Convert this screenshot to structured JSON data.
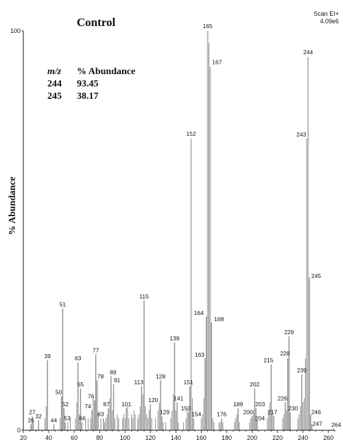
{
  "chart_data": {
    "type": "bar",
    "title": "Control",
    "scan_label": "Scan EI+",
    "scan_value": "4.09e6",
    "ylabel": "% Abundance",
    "xlabel": "",
    "xlim": [
      20,
      265
    ],
    "ylim": [
      0,
      100
    ],
    "x_ticks": [
      20,
      40,
      60,
      80,
      100,
      120,
      140,
      160,
      180,
      200,
      220,
      240,
      260
    ],
    "y_ticks": [
      0,
      100
    ],
    "annotation_table": {
      "headers": [
        "m/z",
        "% Abundance"
      ],
      "rows": [
        [
          "244",
          "93.45"
        ],
        [
          "245",
          "38.17"
        ]
      ]
    },
    "labeled_peaks": [
      {
        "mz": 26,
        "value": 1.5
      },
      {
        "mz": 27,
        "value": 3.5
      },
      {
        "mz": 32,
        "value": 2.5
      },
      {
        "mz": 39,
        "value": 17.5
      },
      {
        "mz": 44,
        "value": 1.5
      },
      {
        "mz": 50,
        "value": 8.5
      },
      {
        "mz": 51,
        "value": 30.5
      },
      {
        "mz": 52,
        "value": 5.5
      },
      {
        "mz": 53,
        "value": 2
      },
      {
        "mz": 63,
        "value": 17
      },
      {
        "mz": 65,
        "value": 10.5
      },
      {
        "mz": 66,
        "value": 2
      },
      {
        "mz": 74,
        "value": 5
      },
      {
        "mz": 76,
        "value": 7.5
      },
      {
        "mz": 77,
        "value": 19
      },
      {
        "mz": 78,
        "value": 12.5
      },
      {
        "mz": 83,
        "value": 3
      },
      {
        "mz": 87,
        "value": 5.5
      },
      {
        "mz": 89,
        "value": 13.5
      },
      {
        "mz": 91,
        "value": 11.5
      },
      {
        "mz": 101,
        "value": 5.5
      },
      {
        "mz": 113,
        "value": 11
      },
      {
        "mz": 115,
        "value": 32.5
      },
      {
        "mz": 120,
        "value": 6.5
      },
      {
        "mz": 128,
        "value": 12.5
      },
      {
        "mz": 129,
        "value": 3.5
      },
      {
        "mz": 139,
        "value": 22
      },
      {
        "mz": 141,
        "value": 7
      },
      {
        "mz": 150,
        "value": 4.5
      },
      {
        "mz": 151,
        "value": 11
      },
      {
        "mz": 152,
        "value": 73
      },
      {
        "mz": 154,
        "value": 3
      },
      {
        "mz": 163,
        "value": 18
      },
      {
        "mz": 164,
        "value": 28.5
      },
      {
        "mz": 165,
        "value": 100
      },
      {
        "mz": 167,
        "value": 91
      },
      {
        "mz": 168,
        "value": 27
      },
      {
        "mz": 176,
        "value": 3
      },
      {
        "mz": 189,
        "value": 5.5
      },
      {
        "mz": 200,
        "value": 3.5
      },
      {
        "mz": 202,
        "value": 10.5
      },
      {
        "mz": 203,
        "value": 5.5
      },
      {
        "mz": 204,
        "value": 2.5
      },
      {
        "mz": 215,
        "value": 16.5
      },
      {
        "mz": 217,
        "value": 3.5
      },
      {
        "mz": 226,
        "value": 7
      },
      {
        "mz": 228,
        "value": 18
      },
      {
        "mz": 229,
        "value": 23.5
      },
      {
        "mz": 230,
        "value": 4.5
      },
      {
        "mz": 239,
        "value": 14
      },
      {
        "mz": 243,
        "value": 73
      },
      {
        "mz": 244,
        "value": 93.45
      },
      {
        "mz": 245,
        "value": 38.17
      },
      {
        "mz": 246,
        "value": 4
      },
      {
        "mz": 247,
        "value": 1.5
      },
      {
        "mz": 264,
        "value": 0.5
      }
    ],
    "minor_peaks": [
      {
        "mz": 28,
        "value": 2
      },
      {
        "mz": 37,
        "value": 3
      },
      {
        "mz": 38,
        "value": 6
      },
      {
        "mz": 49,
        "value": 3
      },
      {
        "mz": 55,
        "value": 2
      },
      {
        "mz": 57,
        "value": 3
      },
      {
        "mz": 61,
        "value": 3
      },
      {
        "mz": 62,
        "value": 7
      },
      {
        "mz": 64,
        "value": 4
      },
      {
        "mz": 69,
        "value": 2.5
      },
      {
        "mz": 71,
        "value": 3
      },
      {
        "mz": 73,
        "value": 3
      },
      {
        "mz": 75,
        "value": 8
      },
      {
        "mz": 79,
        "value": 4
      },
      {
        "mz": 81,
        "value": 3
      },
      {
        "mz": 84,
        "value": 2
      },
      {
        "mz": 85,
        "value": 3
      },
      {
        "mz": 86,
        "value": 4
      },
      {
        "mz": 88,
        "value": 8
      },
      {
        "mz": 90,
        "value": 5
      },
      {
        "mz": 92,
        "value": 3
      },
      {
        "mz": 94,
        "value": 4
      },
      {
        "mz": 95,
        "value": 3
      },
      {
        "mz": 98,
        "value": 3
      },
      {
        "mz": 99,
        "value": 4
      },
      {
        "mz": 100,
        "value": 3
      },
      {
        "mz": 102,
        "value": 6
      },
      {
        "mz": 103,
        "value": 3
      },
      {
        "mz": 105,
        "value": 4
      },
      {
        "mz": 106,
        "value": 3
      },
      {
        "mz": 107,
        "value": 5
      },
      {
        "mz": 108,
        "value": 4
      },
      {
        "mz": 110,
        "value": 3
      },
      {
        "mz": 111,
        "value": 4
      },
      {
        "mz": 112,
        "value": 6
      },
      {
        "mz": 114,
        "value": 9
      },
      {
        "mz": 116,
        "value": 6
      },
      {
        "mz": 117,
        "value": 4
      },
      {
        "mz": 118,
        "value": 3
      },
      {
        "mz": 119,
        "value": 5
      },
      {
        "mz": 121,
        "value": 3
      },
      {
        "mz": 124,
        "value": 3
      },
      {
        "mz": 126,
        "value": 5
      },
      {
        "mz": 127,
        "value": 7
      },
      {
        "mz": 130,
        "value": 2
      },
      {
        "mz": 132,
        "value": 2
      },
      {
        "mz": 136,
        "value": 3
      },
      {
        "mz": 137,
        "value": 5
      },
      {
        "mz": 138,
        "value": 9
      },
      {
        "mz": 140,
        "value": 5
      },
      {
        "mz": 142,
        "value": 2
      },
      {
        "mz": 146,
        "value": 2
      },
      {
        "mz": 148,
        "value": 3
      },
      {
        "mz": 149,
        "value": 5
      },
      {
        "mz": 153,
        "value": 8
      },
      {
        "mz": 160,
        "value": 3
      },
      {
        "mz": 161,
        "value": 4
      },
      {
        "mz": 162,
        "value": 8
      },
      {
        "mz": 166,
        "value": 97
      },
      {
        "mz": 169,
        "value": 3
      },
      {
        "mz": 170,
        "value": 2
      },
      {
        "mz": 174,
        "value": 2
      },
      {
        "mz": 175,
        "value": 2
      },
      {
        "mz": 177,
        "value": 2
      },
      {
        "mz": 186,
        "value": 2
      },
      {
        "mz": 187,
        "value": 3
      },
      {
        "mz": 188,
        "value": 4
      },
      {
        "mz": 190,
        "value": 2
      },
      {
        "mz": 198,
        "value": 2
      },
      {
        "mz": 199,
        "value": 3
      },
      {
        "mz": 201,
        "value": 5
      },
      {
        "mz": 212,
        "value": 3
      },
      {
        "mz": 213,
        "value": 5
      },
      {
        "mz": 214,
        "value": 7
      },
      {
        "mz": 216,
        "value": 5
      },
      {
        "mz": 224,
        "value": 3
      },
      {
        "mz": 225,
        "value": 4
      },
      {
        "mz": 227,
        "value": 5
      },
      {
        "mz": 236,
        "value": 3
      },
      {
        "mz": 237,
        "value": 4
      },
      {
        "mz": 238,
        "value": 6
      },
      {
        "mz": 240,
        "value": 7
      },
      {
        "mz": 241,
        "value": 8
      },
      {
        "mz": 242,
        "value": 18
      }
    ]
  }
}
